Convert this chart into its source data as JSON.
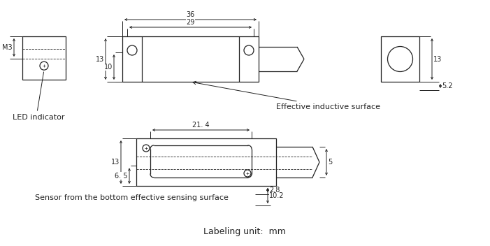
{
  "background_color": "#ffffff",
  "line_color": "#222222",
  "font_size_dim": 7,
  "font_size_label": 8,
  "font_size_unit": 9,
  "label_led": "LED indicator",
  "label_inductive": "Effective inductive surface",
  "label_bottom_sensor": "Sensor from the bottom effective sensing surface",
  "label_unit": "Labeling unit:  mm",
  "dim_36": "36",
  "dim_29": "29",
  "dim_13a": "13",
  "dim_10": "10",
  "dim_13b": "13",
  "dim_52": "5.2",
  "dim_m3": "M3",
  "dim_214": "21. 4",
  "dim_13c": "13",
  "dim_65": "6. 5",
  "dim_5": "5",
  "dim_28": "2.8",
  "dim_102": "10.2"
}
